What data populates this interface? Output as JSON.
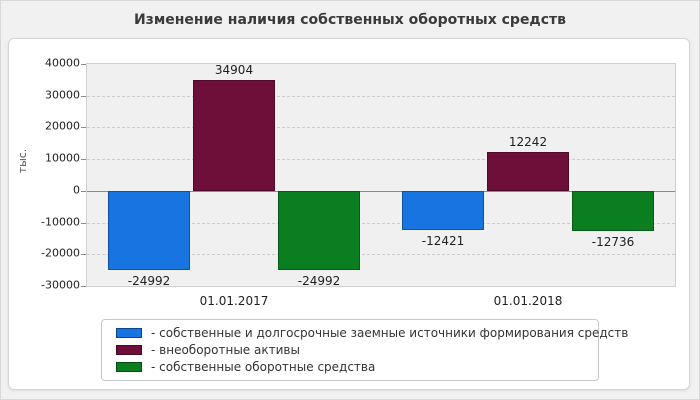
{
  "page": {
    "title": "Изменение наличия собственных оборотных средств"
  },
  "chart_data": {
    "type": "bar",
    "title": "Изменение наличия собственных оборотных средств",
    "categories": [
      "01.01.2017",
      "01.01.2018"
    ],
    "series": [
      {
        "name": "- собственные и долгосрочные заемные источники формирования средств",
        "color": "#1874e0",
        "values": [
          -24992,
          -12421
        ]
      },
      {
        "name": "- внеоборотные активы",
        "color": "#6e0f3a",
        "values": [
          34904,
          12242
        ]
      },
      {
        "name": "- собственные оборотные средства",
        "color": "#0b7e21",
        "values": [
          -24992,
          -12736
        ]
      }
    ],
    "xlabel": "",
    "ylabel": "тыс.",
    "ylim": [
      -30000,
      40000
    ],
    "yticks": [
      40000,
      30000,
      20000,
      10000,
      0,
      -10000,
      -20000,
      -30000
    ],
    "grid": true,
    "legend_position": "bottom",
    "bar_labels": true
  }
}
